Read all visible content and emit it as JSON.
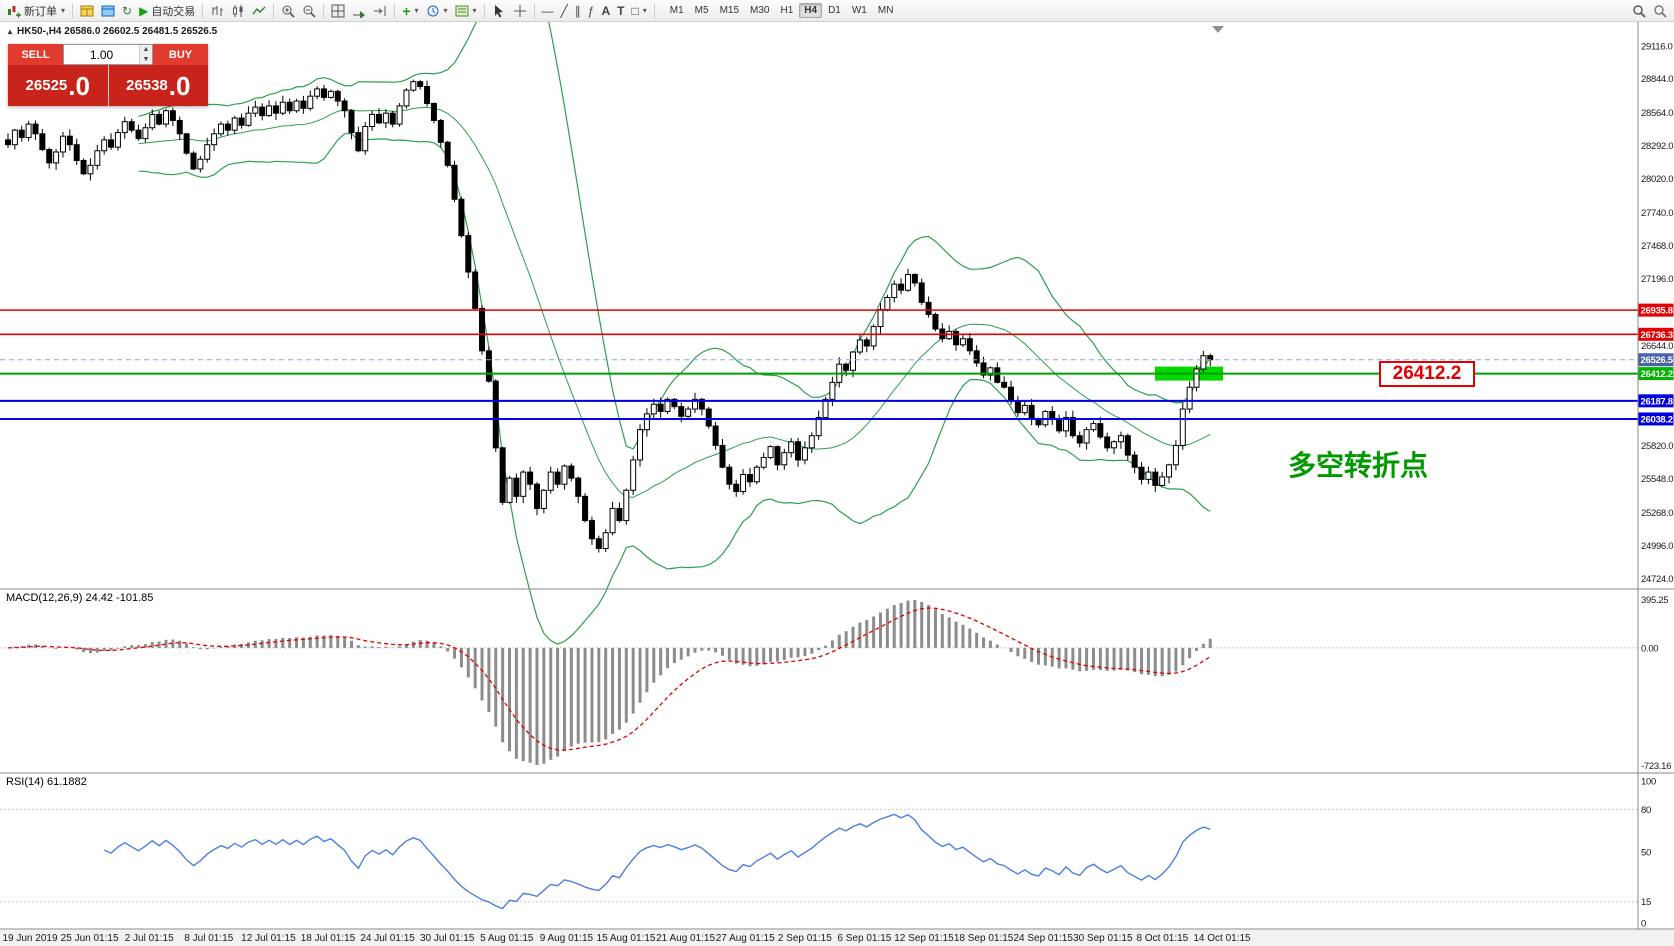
{
  "toolbar": {
    "new_order_label": "新订单",
    "auto_trading_label": "自动交易",
    "timeframes": [
      "M1",
      "M5",
      "M15",
      "M30",
      "H1",
      "H4",
      "D1",
      "W1",
      "MN"
    ],
    "active_timeframe": "H4"
  },
  "chart": {
    "symbol_info": "HK50-,H4  26586.0 26602.5 26481.5 26526.5",
    "annotation_text": "多空转折点",
    "level_callout": "26412.2"
  },
  "trade_panel": {
    "sell_label": "SELL",
    "buy_label": "BUY",
    "volume": "1.00",
    "sell_price_int": "26525",
    "sell_price_frac": ".0",
    "buy_price_int": "26538",
    "buy_price_frac": ".0"
  },
  "price_axis": {
    "ticks": [
      "29116.0",
      "28844.0",
      "28564.0",
      "28292.0",
      "28020.0",
      "27740.0",
      "27468.0",
      "27196.0",
      "26644.0",
      "25820.0",
      "25548.0",
      "25268.0",
      "24996.0",
      "24724.0"
    ],
    "badges": [
      {
        "text": "26935.8",
        "price": 26935.8,
        "color": "#e30000"
      },
      {
        "text": "26736.3",
        "price": 26736.3,
        "color": "#e30000"
      },
      {
        "text": "26526.5",
        "price": 26526.5,
        "color": "#4a62a8"
      },
      {
        "text": "26412.2",
        "price": 26412.2,
        "color": "#00b400"
      },
      {
        "text": "26187.8",
        "price": 26187.8,
        "color": "#0000e0"
      },
      {
        "text": "26038.2",
        "price": 26038.2,
        "color": "#0000e0"
      }
    ]
  },
  "levels": {
    "red": [
      26935.8,
      26736.3
    ],
    "green": 26412.2,
    "blue": [
      26187.8,
      26038.2
    ],
    "bid": 26526.5
  },
  "macd_panel": {
    "label": "MACD(12,26,9) 24.42 -101.85",
    "axis_top": "395.25",
    "axis_zero": "0.00",
    "axis_bottom": "-723.16"
  },
  "rsi_panel": {
    "label": "RSI(14) 61.1882",
    "axis": [
      "100",
      "80",
      "50",
      "15",
      "0"
    ],
    "level_lines": [
      80,
      15
    ]
  },
  "time_axis": [
    "19 Jun 2019",
    "25 Jun 01:15",
    "2 Jul 01:15",
    "8 Jul 01:15",
    "12 Jul 01:15",
    "18 Jul 01:15",
    "24 Jul 01:15",
    "30 Jul 01:15",
    "5 Aug 01:15",
    "9 Aug 01:15",
    "15 Aug 01:15",
    "21 Aug 01:15",
    "27 Aug 01:15",
    "2 Sep 01:15",
    "6 Sep 01:15",
    "12 Sep 01:15",
    "18 Sep 01:15",
    "24 Sep 01:15",
    "30 Sep 01:15",
    "8 Oct 01:15",
    "14 Oct 01:15"
  ],
  "chart_data": {
    "type": "candlestick",
    "title": "HK50- H4",
    "ohlc_readout": {
      "open": 26586.0,
      "high": 26602.5,
      "low": 26481.5,
      "close": 26526.5
    },
    "price_range": [
      24644,
      29312
    ],
    "closes": [
      28300,
      28420,
      28360,
      28470,
      28390,
      28260,
      28150,
      28240,
      28370,
      28300,
      28170,
      28060,
      28130,
      28250,
      28340,
      28280,
      28400,
      28490,
      28420,
      28350,
      28440,
      28550,
      28470,
      28580,
      28500,
      28390,
      28230,
      28100,
      28180,
      28300,
      28390,
      28470,
      28420,
      28520,
      28460,
      28560,
      28610,
      28540,
      28620,
      28560,
      28650,
      28580,
      28660,
      28600,
      28700,
      28760,
      28690,
      28740,
      28660,
      28580,
      28400,
      28250,
      28450,
      28550,
      28480,
      28560,
      28470,
      28620,
      28750,
      28820,
      28780,
      28640,
      28500,
      28320,
      28130,
      27850,
      27550,
      27250,
      26950,
      26600,
      26350,
      25800,
      25350,
      25550,
      25400,
      25600,
      25500,
      25300,
      25450,
      25600,
      25500,
      25650,
      25550,
      25400,
      25200,
      25050,
      24970,
      25100,
      25300,
      25200,
      25450,
      25700,
      25950,
      26080,
      26160,
      26100,
      26200,
      26140,
      26060,
      26120,
      26200,
      26120,
      25980,
      25820,
      25640,
      25500,
      25440,
      25580,
      25520,
      25640,
      25720,
      25810,
      25660,
      25760,
      25850,
      25700,
      25800,
      25900,
      26050,
      26200,
      26340,
      26490,
      26440,
      26590,
      26690,
      26640,
      26800,
      26940,
      27040,
      27150,
      27100,
      27230,
      27160,
      27000,
      26900,
      26780,
      26700,
      26760,
      26650,
      26700,
      26600,
      26500,
      26400,
      26460,
      26340,
      26300,
      26190,
      26090,
      26150,
      26040,
      25990,
      26100,
      26040,
      25940,
      26050,
      25900,
      25840,
      25950,
      26000,
      25890,
      25800,
      25850,
      25900,
      25740,
      25640,
      25540,
      25600,
      25490,
      25560,
      25660,
      25820,
      26120,
      26300,
      26450,
      26560,
      26526.5
    ],
    "indicators": {
      "bollinger": {
        "period": 20,
        "deviation": 2
      },
      "macd": {
        "fast": 12,
        "slow": 26,
        "signal": 9,
        "readout": [
          24.42,
          -101.85
        ]
      },
      "rsi": {
        "period": 14,
        "readout": 61.1882
      }
    }
  }
}
